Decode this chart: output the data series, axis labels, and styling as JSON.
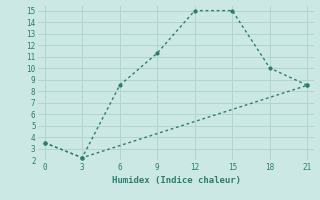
{
  "line1_x": [
    0,
    3,
    6,
    9,
    12,
    15,
    18,
    21
  ],
  "line1_y": [
    3.5,
    2.2,
    8.5,
    11.3,
    15,
    15,
    10,
    8.5
  ],
  "line2_x": [
    0,
    3,
    21
  ],
  "line2_y": [
    3.5,
    2.2,
    8.5
  ],
  "color": "#2d7d6e",
  "bg_color": "#cce8e4",
  "grid_color": "#b0d4cf",
  "xlabel": "Humidex (Indice chaleur)",
  "xlim": [
    -0.5,
    21.5
  ],
  "ylim": [
    2,
    15.4
  ],
  "xticks": [
    0,
    3,
    6,
    9,
    12,
    15,
    18,
    21
  ],
  "yticks": [
    2,
    3,
    4,
    5,
    6,
    7,
    8,
    9,
    10,
    11,
    12,
    13,
    14,
    15
  ],
  "markersize": 3,
  "linewidth": 1.0
}
